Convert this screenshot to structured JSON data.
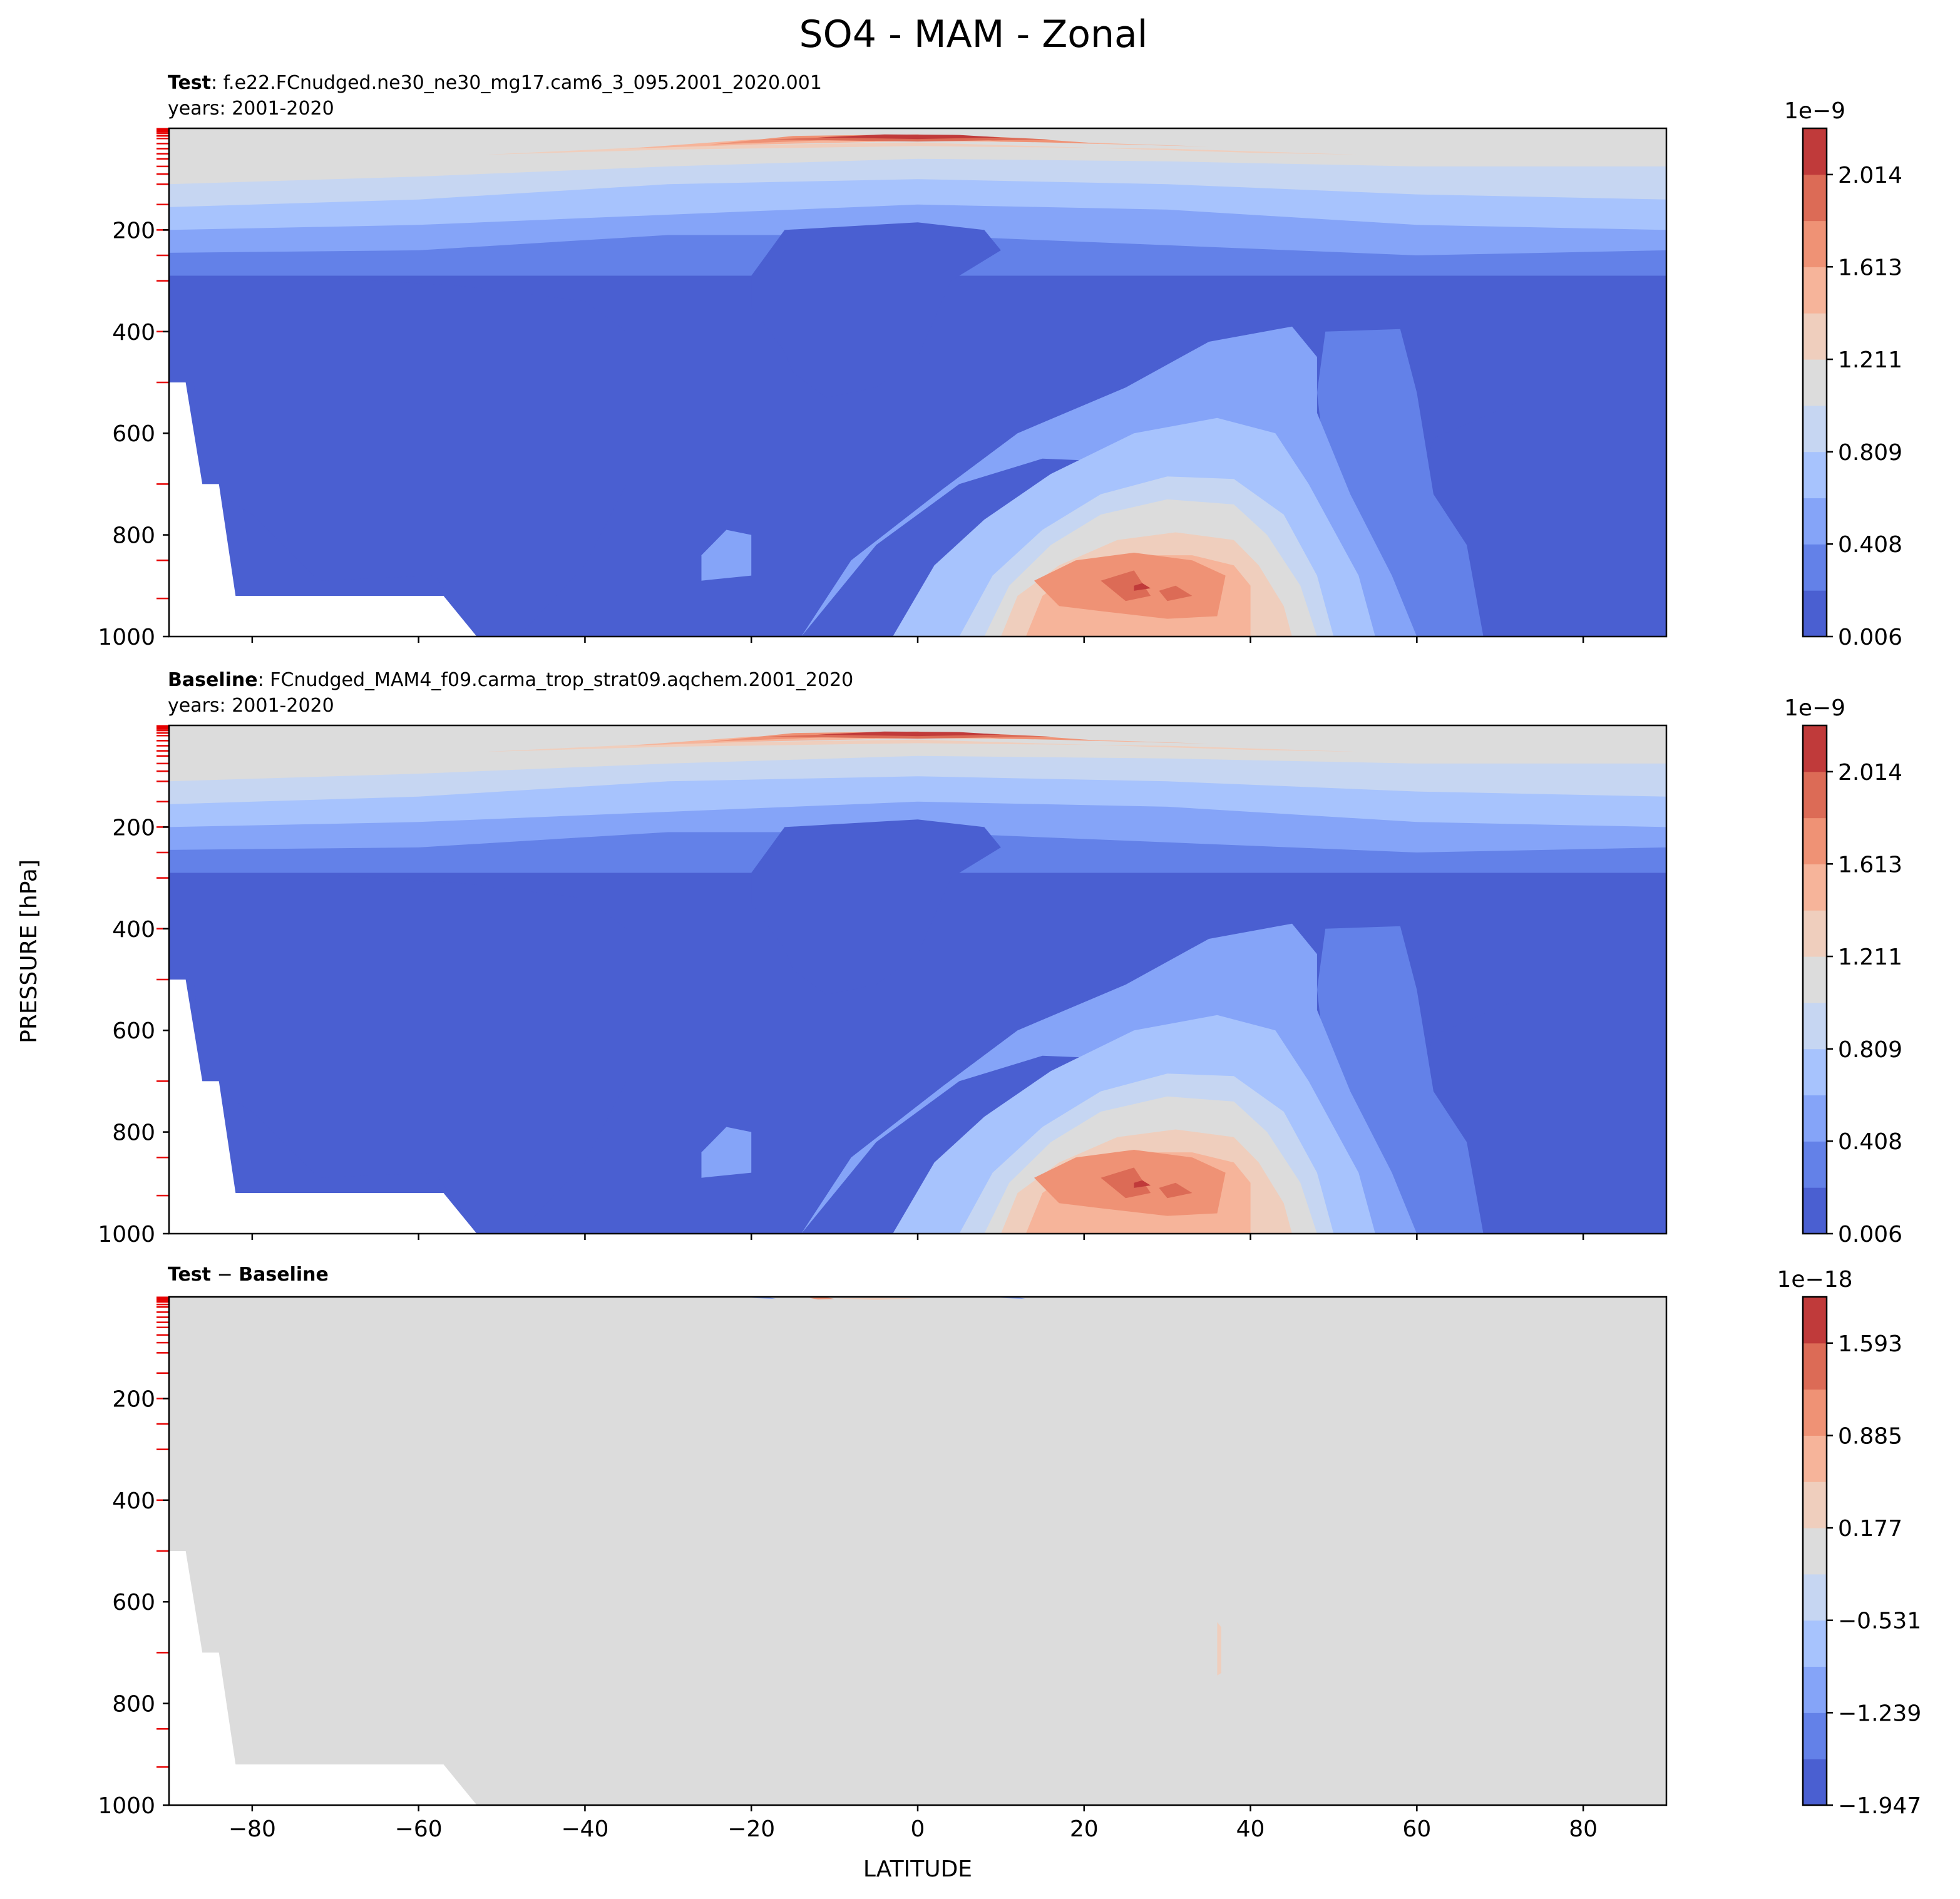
{
  "figure": {
    "suptitle": "SO4 - MAM - Zonal",
    "ylabel": "PRESSURE [hPa]",
    "xlabel": "LATITUDE"
  },
  "chart_data": [
    {
      "type": "heatmap",
      "panel": "test",
      "title_bold": "Test",
      "title_rest": ": f.e22.FCnudged.ne30_ne30_mg17.cam6_3_095.2001_2020.001",
      "subtitle": "years: 2001-2020",
      "x_range": [
        -90,
        90
      ],
      "y_range": [
        0,
        1000
      ],
      "y_inverted": true,
      "x_ticks": [
        "−80",
        "−60",
        "−40",
        "−20",
        "0",
        "20",
        "40",
        "60",
        "80"
      ],
      "y_ticks": [
        "200",
        "400",
        "600",
        "800",
        "1000"
      ],
      "colorbar": {
        "exponent": "1e−9",
        "min": 0.006,
        "max": 2.215,
        "tick_labels": [
          "0.006",
          "0.408",
          "0.809",
          "1.211",
          "1.613",
          "2.014"
        ]
      }
    },
    {
      "type": "heatmap",
      "panel": "baseline",
      "title_bold": "Baseline",
      "title_rest": ": FCnudged_MAM4_f09.carma_trop_strat09.aqchem.2001_2020",
      "subtitle": "years: 2001-2020",
      "x_range": [
        -90,
        90
      ],
      "y_range": [
        0,
        1000
      ],
      "y_inverted": true,
      "x_ticks": [
        "−80",
        "−60",
        "−40",
        "−20",
        "0",
        "20",
        "40",
        "60",
        "80"
      ],
      "y_ticks": [
        "200",
        "400",
        "600",
        "800",
        "1000"
      ],
      "colorbar": {
        "exponent": "1e−9",
        "min": 0.006,
        "max": 2.215,
        "tick_labels": [
          "0.006",
          "0.408",
          "0.809",
          "1.211",
          "1.613",
          "2.014"
        ]
      }
    },
    {
      "type": "heatmap",
      "panel": "difference",
      "title_bold_a": "Test",
      "title_sep": " − ",
      "title_bold_b": "Baseline",
      "x_range": [
        -90,
        90
      ],
      "y_range": [
        0,
        1000
      ],
      "y_inverted": true,
      "x_ticks": [
        "−80",
        "−60",
        "−40",
        "−20",
        "0",
        "20",
        "40",
        "60",
        "80"
      ],
      "y_ticks": [
        "200",
        "400",
        "600",
        "800",
        "1000"
      ],
      "colorbar": {
        "exponent": "1e−18",
        "min": -1.947,
        "max": 1.947,
        "tick_labels": [
          "−1.947",
          "−1.239",
          "−0.531",
          "0.177",
          "0.885",
          "1.593"
        ]
      }
    }
  ],
  "colors": {
    "levels11": [
      "#4a5fd1",
      "#6381e8",
      "#85a4f8",
      "#a7c3fd",
      "#c6d6f2",
      "#dcdcdc",
      "#efcebd",
      "#f6b49a",
      "#ef9275",
      "#dc6b56",
      "#c03a3a"
    ],
    "diff_background": "#dcdcdc",
    "tick_marker": "#e60000"
  }
}
